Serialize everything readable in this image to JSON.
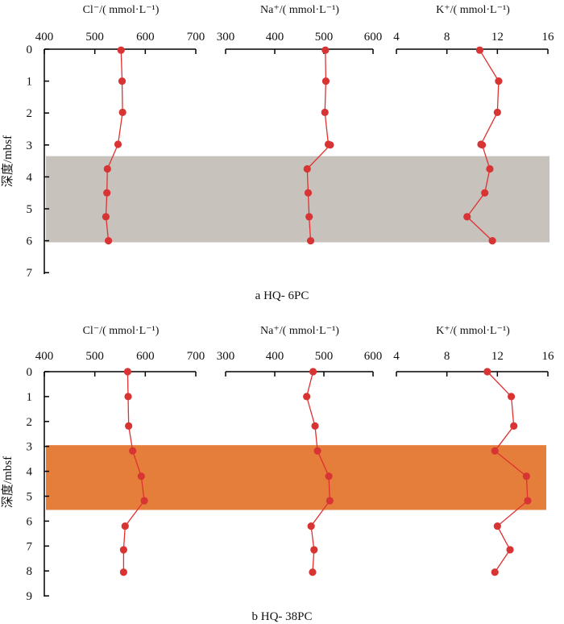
{
  "figure": {
    "panels": [
      {
        "caption": "a  HQ- 6PC",
        "ylabel": "深度/mbsf",
        "y_ticks": [
          "0",
          "1",
          "2",
          "3",
          "4",
          "5",
          "6",
          "7"
        ],
        "highlight": {
          "from_depth": 3.35,
          "to_depth": 6.05,
          "color": "#c8c2bd"
        }
      },
      {
        "caption": "b  HQ- 38PC",
        "ylabel": "深度/mbsf",
        "y_ticks": [
          "0",
          "1",
          "2",
          "3",
          "4",
          "5",
          "6",
          "7",
          "8",
          "9"
        ],
        "highlight": {
          "from_depth": 2.95,
          "to_depth": 5.55,
          "color": "#e57e3b"
        }
      }
    ],
    "columns": [
      {
        "title": "Cl⁻/( mmol·L⁻¹)",
        "ticks": [
          "400",
          "500",
          "600",
          "700"
        ]
      },
      {
        "title": "Na⁺/( mmol·L⁻¹)",
        "ticks": [
          "300",
          "400",
          "500",
          "600"
        ]
      },
      {
        "title": "K⁺/( mmol·L⁻¹)",
        "ticks": [
          "4",
          "8",
          "12",
          "16"
        ]
      }
    ]
  },
  "colors": {
    "line": "#e03030",
    "marker": "#d93434",
    "axis": "#000000"
  },
  "chart_data": [
    {
      "type": "line",
      "panel": "a",
      "title": "a  HQ- 6PC",
      "ylabel": "深度/mbsf",
      "ylim": [
        0,
        7
      ],
      "y_reversed": true,
      "depth": [
        0,
        1,
        2,
        3,
        4,
        5,
        6
      ],
      "series": [
        {
          "name": "Cl⁻/( mmol·L⁻¹)",
          "xlim": [
            400,
            700
          ],
          "x_ticks": [
            400,
            500,
            600,
            700
          ],
          "points": [
            [
              552,
              0.03
            ],
            [
              554,
              1.0
            ],
            [
              555,
              1.98
            ],
            [
              546,
              2.98
            ],
            [
              525,
              3.75
            ],
            [
              524,
              4.5
            ],
            [
              522,
              5.25
            ],
            [
              527,
              6.0
            ]
          ]
        },
        {
          "name": "Na⁺/( mmol·L⁻¹)",
          "xlim": [
            300,
            600
          ],
          "x_ticks": [
            300,
            400,
            500,
            600
          ],
          "points": [
            [
              503,
              0.03
            ],
            [
              504,
              1.0
            ],
            [
              502,
              1.98
            ],
            [
              509,
              2.98
            ],
            [
              513,
              3.0
            ],
            [
              466,
              3.75
            ],
            [
              468,
              4.5
            ],
            [
              470,
              5.25
            ],
            [
              473,
              6.0
            ]
          ]
        },
        {
          "name": "K⁺/( mmol·L⁻¹)",
          "xlim": [
            4,
            16
          ],
          "x_ticks": [
            4,
            8,
            12,
            16
          ],
          "points": [
            [
              10.6,
              0.03
            ],
            [
              12.1,
              1.0
            ],
            [
              12.0,
              1.98
            ],
            [
              10.7,
              2.98
            ],
            [
              10.8,
              3.0
            ],
            [
              11.4,
              3.75
            ],
            [
              11.0,
              4.5
            ],
            [
              9.6,
              5.25
            ],
            [
              11.6,
              6.0
            ]
          ]
        }
      ]
    },
    {
      "type": "line",
      "panel": "b",
      "title": "b  HQ- 38PC",
      "ylabel": "深度/mbsf",
      "ylim": [
        0,
        9
      ],
      "y_reversed": true,
      "depth": [
        0,
        1,
        2,
        3,
        4,
        5,
        6,
        7,
        8
      ],
      "series": [
        {
          "name": "Cl⁻/( mmol·L⁻¹)",
          "xlim": [
            400,
            700
          ],
          "x_ticks": [
            400,
            500,
            600,
            700
          ],
          "points": [
            [
              565,
              0.0
            ],
            [
              566,
              1.0
            ],
            [
              567,
              2.18
            ],
            [
              575,
              3.18
            ],
            [
              592,
              4.2
            ],
            [
              598,
              5.18
            ],
            [
              560,
              6.2
            ],
            [
              557,
              7.15
            ],
            [
              557,
              8.05
            ]
          ]
        },
        {
          "name": "Na⁺/( mmol·L⁻¹)",
          "xlim": [
            300,
            600
          ],
          "x_ticks": [
            300,
            400,
            500,
            600
          ],
          "points": [
            [
              478,
              0.0
            ],
            [
              465,
              1.0
            ],
            [
              482,
              2.18
            ],
            [
              487,
              3.18
            ],
            [
              510,
              4.2
            ],
            [
              512,
              5.18
            ],
            [
              474,
              6.2
            ],
            [
              480,
              7.15
            ],
            [
              477,
              8.05
            ]
          ]
        },
        {
          "name": "K⁺/( mmol·L⁻¹)",
          "xlim": [
            4,
            16
          ],
          "x_ticks": [
            4,
            8,
            12,
            16
          ],
          "points": [
            [
              11.2,
              0.0
            ],
            [
              13.1,
              1.0
            ],
            [
              13.3,
              2.18
            ],
            [
              11.8,
              3.18
            ],
            [
              14.3,
              4.2
            ],
            [
              14.4,
              5.18
            ],
            [
              12.0,
              6.2
            ],
            [
              13.0,
              7.15
            ],
            [
              11.8,
              8.05
            ]
          ]
        }
      ]
    }
  ]
}
